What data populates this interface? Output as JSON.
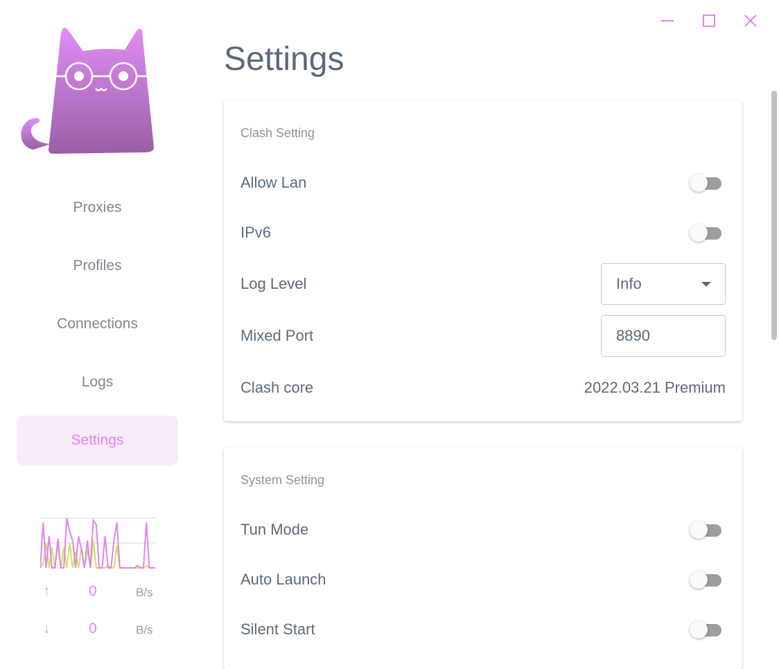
{
  "window": {
    "minimize_icon": "minimize-icon",
    "maximize_icon": "maximize-icon",
    "close_icon": "close-icon"
  },
  "sidebar": {
    "items": [
      {
        "label": "Proxies"
      },
      {
        "label": "Profiles"
      },
      {
        "label": "Connections"
      },
      {
        "label": "Logs"
      },
      {
        "label": "Settings",
        "active": true
      }
    ],
    "traffic": {
      "upload": {
        "value": "0",
        "unit": "B/s"
      },
      "download": {
        "value": "0",
        "unit": "B/s"
      },
      "series_up": [
        0,
        10,
        2,
        0,
        6,
        0,
        0,
        0,
        6,
        0,
        10,
        2,
        0,
        5,
        0,
        0,
        0,
        10,
        9,
        0,
        0,
        0,
        0,
        3,
        0,
        0,
        0,
        0,
        0,
        0,
        1,
        0,
        0,
        0,
        0,
        0,
        0,
        0,
        0,
        0
      ],
      "upload_color": "#e083f0",
      "download_color": "#d4e157"
    }
  },
  "page": {
    "title": "Settings"
  },
  "clash_setting": {
    "title": "Clash Setting",
    "allow_lan": {
      "label": "Allow Lan",
      "on": false
    },
    "ipv6": {
      "label": "IPv6",
      "on": false
    },
    "log_level": {
      "label": "Log Level",
      "value": "Info"
    },
    "mixed_port": {
      "label": "Mixed Port",
      "value": "8890"
    },
    "clash_core": {
      "label": "Clash core",
      "value": "2022.03.21 Premium"
    }
  },
  "system_setting": {
    "title": "System Setting",
    "tun_mode": {
      "label": "Tun Mode",
      "on": false
    },
    "auto_launch": {
      "label": "Auto Launch",
      "on": false
    },
    "silent_start": {
      "label": "Silent Start",
      "on": false
    }
  },
  "colors": {
    "accent": "#e083f0",
    "text": "#5b6a79"
  }
}
